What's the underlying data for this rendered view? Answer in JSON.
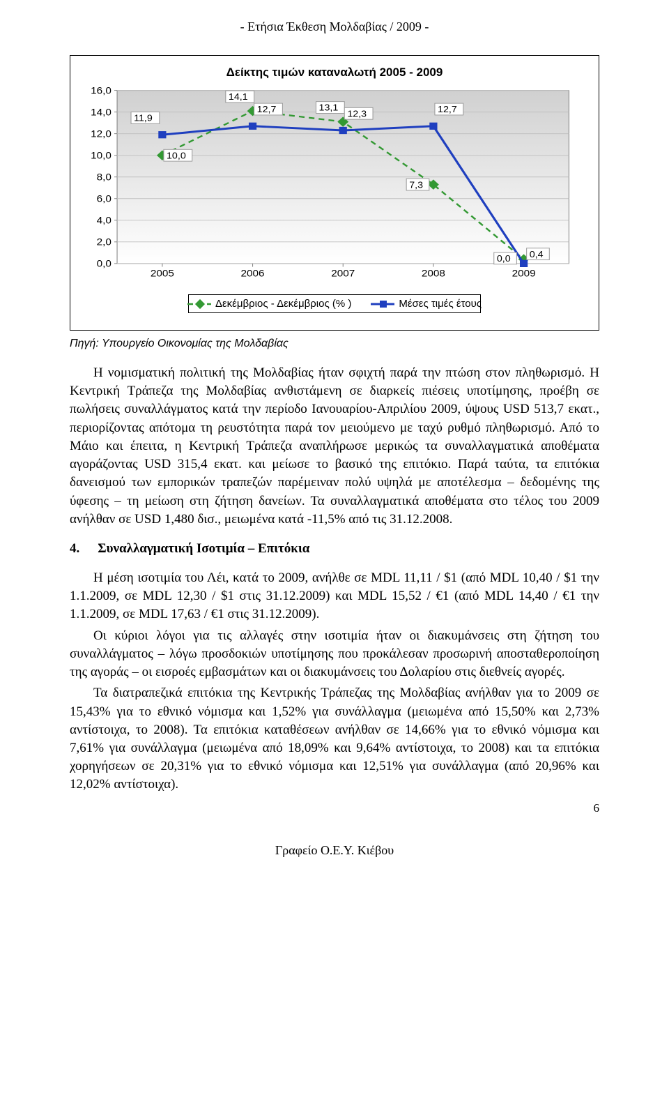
{
  "header": "- Ετήσια Έκθεση Μολδαβίας / 2009 -",
  "chart": {
    "type": "line",
    "title": "Δείκτης τιμών καταναλωτή 2005 - 2009",
    "x_categories": [
      "2005",
      "2006",
      "2007",
      "2008",
      "2009"
    ],
    "y_min": 0.0,
    "y_max": 16.0,
    "y_step": 2.0,
    "y_labels": [
      "0,0",
      "2,0",
      "4,0",
      "6,0",
      "8,0",
      "10,0",
      "12,0",
      "14,0",
      "16,0"
    ],
    "grid_color": "#bfbfbf",
    "plot_bg_top": "#d0d0d0",
    "plot_bg_bot": "#ffffff",
    "axis_color": "#808080",
    "series": [
      {
        "name": "Δεκέμβριος - Δεκέμβριος (% )",
        "values": [
          10.0,
          14.1,
          13.1,
          7.3,
          0.4
        ],
        "labels": [
          "10,0",
          "14,1",
          "13,1",
          "7,3",
          "0,4"
        ],
        "line_color": "#339933",
        "dash": "8 6",
        "fill": "#ffffff",
        "stroke_width": 2.5,
        "marker": "diamond"
      },
      {
        "name": "Μέσες τιμές έτους",
        "values": [
          11.9,
          12.7,
          12.3,
          12.7,
          0.0
        ],
        "labels": [
          "11,9",
          "12,7",
          "12,3",
          "12,7",
          "0,0"
        ],
        "line_color": "#1f3fbf",
        "dash": "",
        "fill": "#ffffff",
        "stroke_width": 3.2,
        "marker": "square"
      }
    ],
    "label_box_stroke": "#999999",
    "label_box_fill": "#ffffff",
    "tick_font_size": 15,
    "label_font_size": 14
  },
  "source_text": "Πηγή: Υπουργείο Οικονομίας της Μολδαβίας",
  "para1": "Η νομισματική πολιτική της Μολδαβίας ήταν σφιχτή παρά την πτώση στον πληθωρισμό. Η Κεντρική Τράπεζα της Μολδαβίας ανθιστάμενη σε διαρκείς πιέσεις υποτίμησης, προέβη σε πωλήσεις συναλλάγματος κατά την περίοδο Ιανουαρίου-Απριλίου 2009, ύψους USD 513,7 εκατ., περιορίζοντας απότομα τη ρευστότητα παρά τον μειούμενο με ταχύ ρυθμό πληθωρισμό. Από το Μάιο και έπειτα, η Κεντρική Τράπεζα αναπλήρωσε μερικώς τα συναλλαγματικά αποθέματα αγοράζοντας USD 315,4 εκατ. και μείωσε το βασικό της επιτόκιο. Παρά ταύτα, τα επιτόκια δανεισμού των εμπορικών τραπεζών παρέμειναν πολύ υψηλά με αποτέλεσμα – δεδομένης της ύφεσης – τη μείωση στη ζήτηση δανείων. Τα συναλλαγματικά αποθέματα στο τέλος του 2009 ανήλθαν σε USD 1,480 δισ., μειωμένα κατά -11,5% από τις 31.12.2008.",
  "section_num": "4.",
  "section_title": "Συναλλαγματική Ισοτιμία – Επιτόκια",
  "para2a": "Η μέση ισοτιμία του Λέι, κατά το 2009, ανήλθε σε MDL 11,11 / $1 (από MDL 10,40 / $1 την 1.1.2009, σε MDL 12,30 / $1 στις 31.12.2009) και MDL 15,52 / €1 (από MDL 14,40 / €1 την 1.1.2009, σε MDL 17,63 / €1 στις 31.12.2009).",
  "para2b": "Οι κύριοι λόγοι για τις αλλαγές στην ισοτιμία ήταν οι διακυμάνσεις στη ζήτηση του συναλλάγματος – λόγω προσδοκιών υποτίμησης που προκάλεσαν προσωρινή αποσταθεροποίηση της αγοράς – οι εισροές εμβασμάτων και οι διακυμάνσεις του Δολαρίου στις διεθνείς αγορές.",
  "para2c": "Τα διατραπεζικά επιτόκια της Κεντρικής Τράπεζας της Μολδαβίας ανήλθαν για το 2009 σε 15,43% για το εθνικό νόμισμα και 1,52% για συνάλλαγμα (μειωμένα από 15,50% και 2,73% αντίστοιχα, το 2008). Τα επιτόκια καταθέσεων ανήλθαν σε 14,66% για το εθνικό νόμισμα και 7,61% για συνάλλαγμα (μειωμένα από 18,09% και 9,64% αντίστοιχα, το 2008) και τα επιτόκια χορηγήσεων σε 20,31% για το εθνικό νόμισμα και 12,51% για συνάλλαγμα (από 20,96% και 12,02% αντίστοιχα).",
  "footer": "Γραφείο Ο.Ε.Υ. Κιέβου",
  "pagenum": "6"
}
